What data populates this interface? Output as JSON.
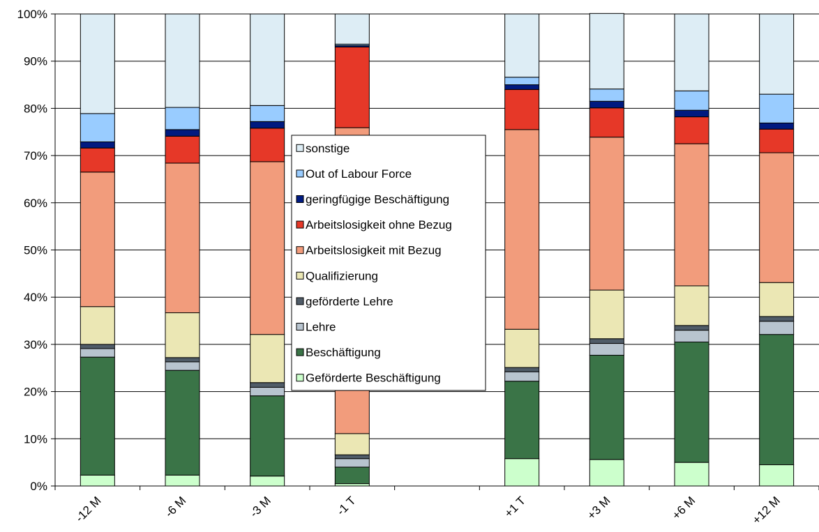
{
  "chart_data": {
    "type": "bar",
    "stacked": true,
    "orientation": "vertical",
    "categories": [
      "-12 M",
      "-6 M",
      "-3 M",
      "-1 T",
      "",
      "+1 T",
      "+3 M",
      "+6 M",
      "+12 M"
    ],
    "ylim": [
      0,
      100
    ],
    "yticks": [
      "0%",
      "10%",
      "20%",
      "30%",
      "40%",
      "50%",
      "60%",
      "70%",
      "80%",
      "90%",
      "100%"
    ],
    "grid": true,
    "legend_position": "center-left",
    "series": [
      {
        "name": "Geförderte Beschäftigung",
        "color": "#ccffcc",
        "values": [
          2.3,
          2.3,
          2.1,
          0.5,
          null,
          5.8,
          5.6,
          5.0,
          4.5
        ]
      },
      {
        "name": "Beschäftigung",
        "color": "#3a7447",
        "values": [
          25.0,
          22.2,
          17.0,
          3.5,
          null,
          16.4,
          22.1,
          25.5,
          27.6
        ]
      },
      {
        "name": "Lehre",
        "color": "#b8c4cf",
        "values": [
          1.8,
          1.8,
          1.8,
          1.8,
          null,
          2.0,
          2.5,
          2.5,
          2.8
        ]
      },
      {
        "name": "geförderte Lehre",
        "color": "#505c68",
        "values": [
          0.9,
          0.9,
          1.0,
          0.8,
          null,
          0.9,
          1.0,
          1.0,
          1.0
        ]
      },
      {
        "name": "Qualifizierung",
        "color": "#ebe7b4",
        "values": [
          8.0,
          9.5,
          10.2,
          4.5,
          null,
          8.1,
          10.3,
          8.4,
          7.2
        ]
      },
      {
        "name": "Arbeitslosigkeit mit Bezug",
        "color": "#f29c7c",
        "values": [
          28.5,
          31.7,
          36.6,
          64.8,
          null,
          42.3,
          32.4,
          30.1,
          27.5
        ]
      },
      {
        "name": "Arbeitslosigkeit ohne Bezug",
        "color": "#e63828",
        "values": [
          5.1,
          5.7,
          7.1,
          17.1,
          null,
          8.5,
          6.2,
          5.7,
          5.0
        ]
      },
      {
        "name": "geringfügige Beschäftigung",
        "color": "#001a80",
        "values": [
          1.3,
          1.4,
          1.4,
          0.3,
          null,
          1.0,
          1.4,
          1.4,
          1.3
        ]
      },
      {
        "name": "Out of Labour Force",
        "color": "#99ccff",
        "values": [
          6.0,
          4.7,
          3.4,
          0.3,
          null,
          1.6,
          2.6,
          4.1,
          6.1
        ]
      },
      {
        "name": "sonstige",
        "color": "#ddedf5",
        "values": [
          21.1,
          19.8,
          19.4,
          6.4,
          null,
          13.4,
          16.0,
          16.3,
          17.0
        ]
      }
    ],
    "legend_order": [
      "sonstige",
      "Out of Labour Force",
      "geringfügige Beschäftigung",
      "Arbeitslosigkeit ohne Bezug",
      "Arbeitslosigkeit mit Bezug",
      "Qualifizierung",
      "geförderte Lehre",
      "Lehre",
      "Beschäftigung",
      "Geförderte Beschäftigung"
    ]
  }
}
